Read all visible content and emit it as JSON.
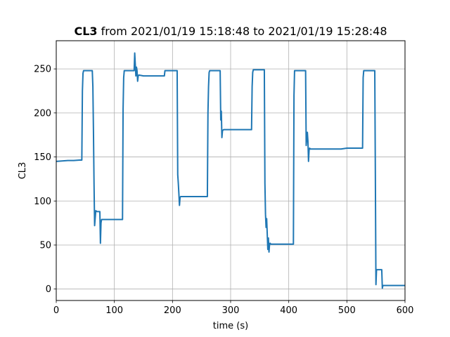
{
  "chart_data": {
    "type": "line",
    "title_bold": "CL3",
    "title_rest": " from 2021/01/19 15:18:48 to 2021/01/19 15:28:48",
    "xlabel": "time (s)",
    "ylabel": "CL3",
    "xlim": [
      0,
      600
    ],
    "ylim": [
      -13,
      282
    ],
    "grid": true,
    "line_color": "#1f77b4",
    "x_ticks": [
      0,
      100,
      200,
      300,
      400,
      500,
      600
    ],
    "y_ticks": [
      0,
      50,
      100,
      150,
      200,
      250
    ],
    "series": [
      {
        "x": [
          0,
          10,
          20,
          30,
          40,
          44,
          45,
          46,
          47,
          60,
          62,
          63,
          64,
          65,
          66,
          68,
          70,
          75,
          76,
          77,
          78,
          80,
          90,
          100,
          110,
          114,
          115,
          116,
          117,
          120,
          130,
          134,
          135,
          137,
          138,
          139,
          140,
          141,
          142,
          150,
          160,
          170,
          180,
          186,
          187,
          190,
          200,
          208,
          209,
          210,
          211,
          212,
          213,
          214,
          215,
          220,
          240,
          260,
          261,
          262,
          263,
          264,
          270,
          280,
          282,
          283,
          284,
          285,
          286,
          288,
          290,
          300,
          310,
          320,
          336,
          337,
          338,
          339,
          340,
          350,
          358,
          359,
          360,
          361,
          362,
          364,
          365,
          366,
          367,
          368,
          369,
          370,
          380,
          390,
          400,
          408,
          409,
          410,
          411,
          412,
          420,
          429,
          430,
          432,
          433,
          434,
          435,
          436,
          437,
          438,
          440,
          450,
          460,
          470,
          480,
          490,
          500,
          510,
          527,
          528,
          529,
          530,
          531,
          540,
          548,
          549,
          550,
          551,
          552,
          555,
          560,
          561,
          562,
          563,
          570,
          580,
          590,
          600
        ],
        "y": [
          145,
          145.5,
          146,
          146,
          146.5,
          146.5,
          225,
          245,
          248,
          248,
          248,
          230,
          180,
          120,
          72,
          89,
          88,
          88,
          52,
          75,
          79,
          79,
          79,
          79,
          79,
          79,
          205,
          240,
          248,
          248,
          248,
          248,
          268,
          242,
          252,
          248,
          236,
          242,
          243,
          242,
          242,
          242,
          242,
          242,
          248,
          248,
          248,
          248,
          130,
          120,
          108,
          95,
          104,
          105,
          105,
          105,
          105,
          105,
          200,
          230,
          246,
          248,
          248,
          248,
          248,
          192,
          202,
          172,
          180,
          181,
          181,
          181,
          181,
          181,
          181,
          230,
          246,
          249,
          249,
          249,
          249,
          120,
          85,
          70,
          80,
          45,
          58,
          42,
          51,
          52,
          51,
          51,
          51,
          51,
          51,
          51,
          220,
          248,
          248,
          248,
          248,
          248,
          163,
          178,
          168,
          145,
          158,
          160,
          159,
          159,
          159,
          159,
          159,
          159,
          159,
          159,
          160,
          160,
          160,
          240,
          248,
          248,
          248,
          248,
          248,
          130,
          5,
          22,
          22,
          22,
          22,
          1,
          4,
          4,
          4,
          4,
          4,
          4
        ]
      }
    ]
  }
}
